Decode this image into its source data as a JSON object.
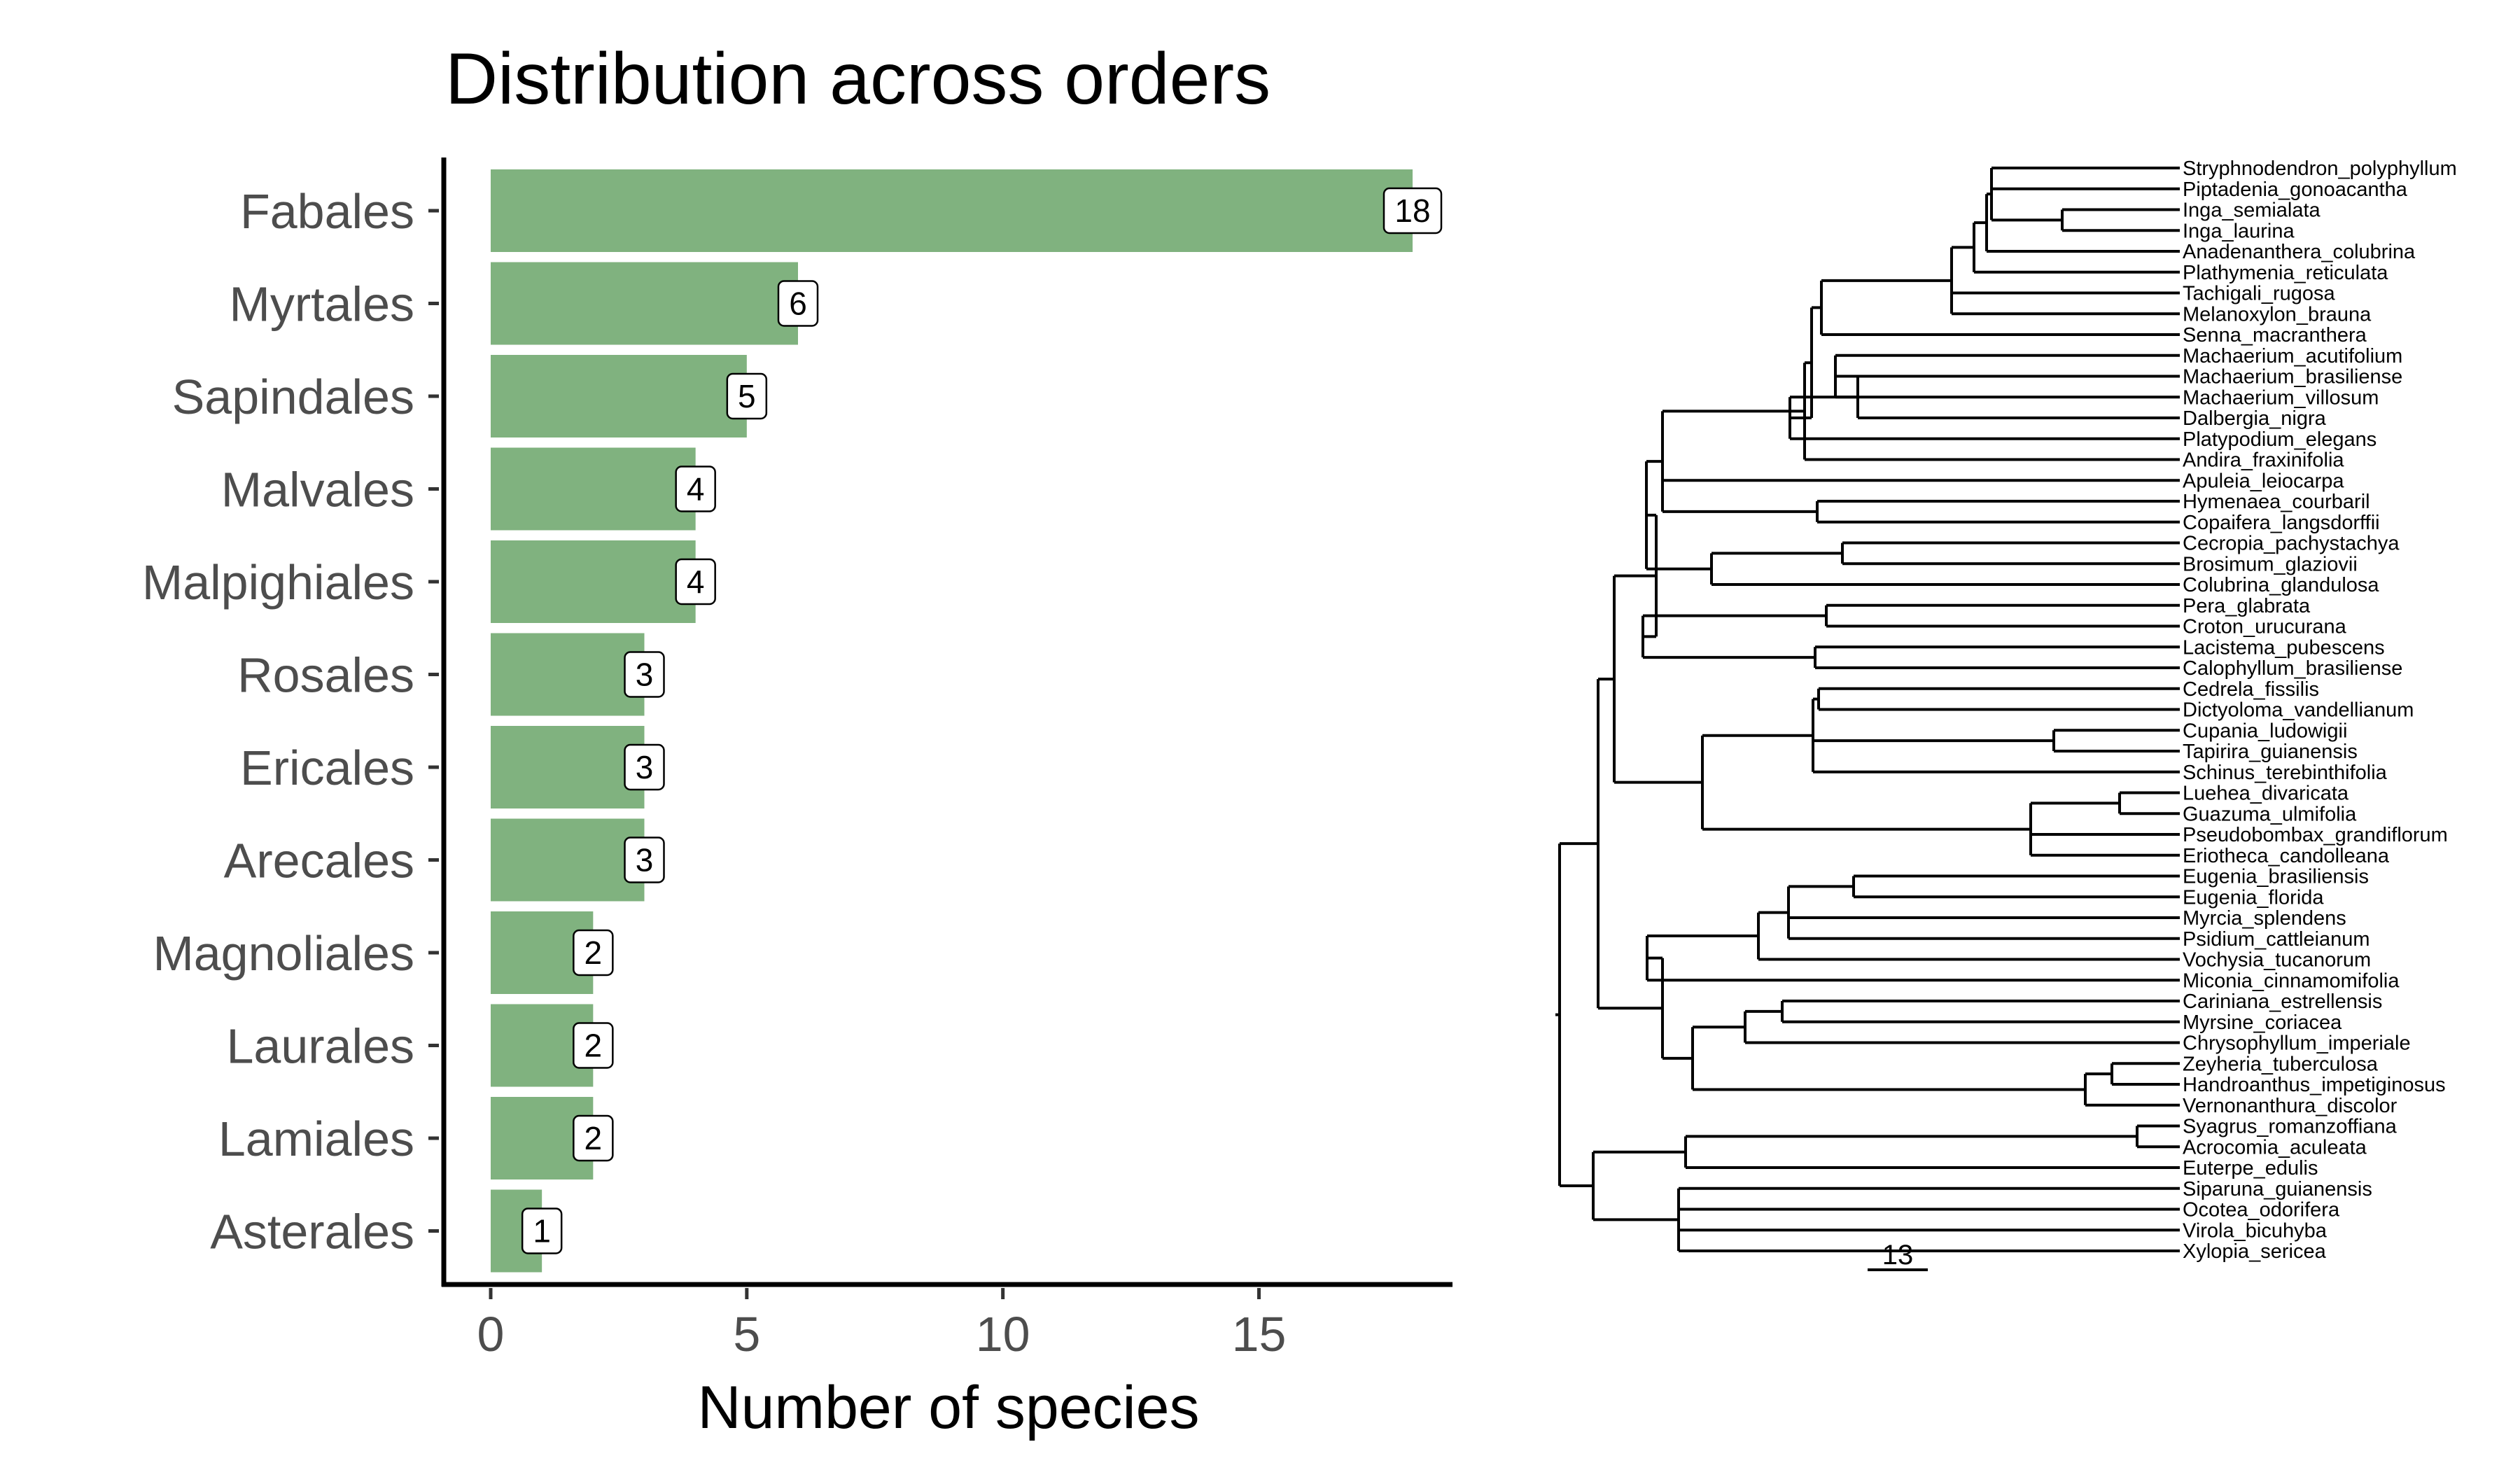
{
  "chart_data": [
    {
      "type": "bar",
      "orientation": "horizontal",
      "title": "Distribution across orders",
      "xlabel": "Number of species",
      "ylabel": "",
      "categories": [
        "Fabales",
        "Myrtales",
        "Sapindales",
        "Malvales",
        "Malpighiales",
        "Rosales",
        "Ericales",
        "Arecales",
        "Magnoliales",
        "Laurales",
        "Lamiales",
        "Asterales"
      ],
      "values": [
        18,
        6,
        5,
        4,
        4,
        3,
        3,
        3,
        2,
        2,
        2,
        1
      ],
      "xlim": [
        0,
        18.5
      ],
      "xticks": [
        0,
        5,
        10,
        15
      ],
      "bar_color": "#80b27f",
      "grid": false
    },
    {
      "type": "phylogenetic-tree",
      "tips": [
        "Stryphnodendron_polyphyllum",
        "Piptadenia_gonoacantha",
        "Inga_semialata",
        "Inga_laurina",
        "Anadenanthera_colubrina",
        "Plathymenia_reticulata",
        "Tachigali_rugosa",
        "Melanoxylon_brauna",
        "Senna_macranthera",
        "Machaerium_acutifolium",
        "Machaerium_brasiliense",
        "Machaerium_villosum",
        "Dalbergia_nigra",
        "Platypodium_elegans",
        "Andira_fraxinifolia",
        "Apuleia_leiocarpa",
        "Hymenaea_courbaril",
        "Copaifera_langsdorffii",
        "Cecropia_pachystachya",
        "Brosimum_glaziovii",
        "Colubrina_glandulosa",
        "Pera_glabrata",
        "Croton_urucurana",
        "Lacistema_pubescens",
        "Calophyllum_brasiliense",
        "Cedrela_fissilis",
        "Dictyoloma_vandellianum",
        "Cupania_ludowigii",
        "Tapirira_guianensis",
        "Schinus_terebinthifolia",
        "Luehea_divaricata",
        "Guazuma_ulmifolia",
        "Pseudobombax_grandiflorum",
        "Eriotheca_candolleana",
        "Eugenia_brasiliensis",
        "Eugenia_florida",
        "Myrcia_splendens",
        "Psidium_cattleianum",
        "Vochysia_tucanorum",
        "Miconia_cinnamomifolia",
        "Cariniana_estrellensis",
        "Myrsine_coriacea",
        "Chrysophyllum_imperiale",
        "Zeyheria_tuberculosa",
        "Handroanthus_impetiginosus",
        "Vernonanthura_discolor",
        "Syagrus_romanzoffiana",
        "Acrocomia_aculeata",
        "Euterpe_edulis",
        "Siparuna_guianensis",
        "Ocotea_odorifera",
        "Virola_bicuhyba",
        "Xylopia_sericea"
      ],
      "scale_bar_label": "13"
    }
  ]
}
